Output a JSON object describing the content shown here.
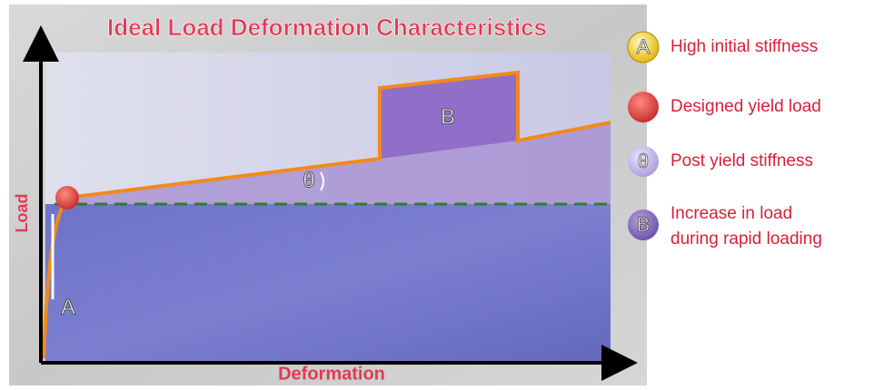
{
  "title": "Ideal Load Deformation Characteristics",
  "axes": {
    "y_label": "Load",
    "x_label": "Deformation"
  },
  "annotations": {
    "initial": "A",
    "angle": "θ",
    "rapid": "B"
  },
  "legend": [
    {
      "icon": "A",
      "lines": [
        "High initial stiffness"
      ]
    },
    {
      "icon": "",
      "lines": [
        "Designed yield load"
      ]
    },
    {
      "icon": "θ",
      "lines": [
        "Post yield stiffness"
      ]
    },
    {
      "icon": "B",
      "lines": [
        "Increase in load",
        "during rapid loading"
      ]
    }
  ]
}
